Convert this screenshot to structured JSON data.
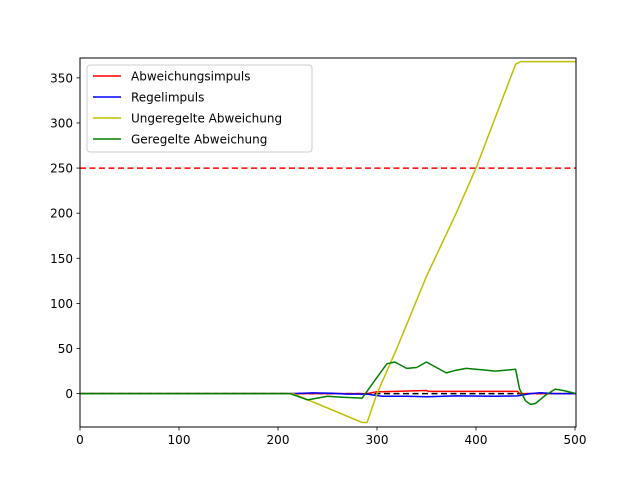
{
  "chart_data": {
    "type": "line",
    "xlim": [
      0,
      501
    ],
    "ylim": [
      -37,
      372
    ],
    "x_ticks": [
      0,
      100,
      200,
      300,
      400,
      500
    ],
    "y_ticks": [
      0,
      50,
      100,
      150,
      200,
      250,
      300,
      350
    ],
    "grid": false,
    "legend_position": "top-left",
    "title": "",
    "xlabel": "",
    "ylabel": "",
    "reference_lines": [
      {
        "y": 250,
        "color": "#ff0000",
        "style": "dashed"
      },
      {
        "y": 0,
        "color": "#000000",
        "style": "dashed"
      }
    ],
    "series": [
      {
        "name": "Abweichungsimpuls",
        "color": "#ff0000",
        "points": [
          [
            0,
            0
          ],
          [
            290,
            0
          ],
          [
            300,
            2
          ],
          [
            350,
            3.5
          ],
          [
            352,
            2.5
          ],
          [
            442,
            2.5
          ],
          [
            444,
            0
          ],
          [
            501,
            0
          ]
        ]
      },
      {
        "name": "Regelimpuls",
        "color": "#0000ff",
        "points": [
          [
            0,
            0
          ],
          [
            215,
            0
          ],
          [
            235,
            0.8
          ],
          [
            255,
            0.3
          ],
          [
            270,
            -0.5
          ],
          [
            290,
            -0.5
          ],
          [
            305,
            -3
          ],
          [
            330,
            -3
          ],
          [
            350,
            -3.5
          ],
          [
            380,
            -2.5
          ],
          [
            420,
            -3
          ],
          [
            442,
            -2.5
          ],
          [
            455,
            0
          ],
          [
            465,
            1
          ],
          [
            480,
            0
          ],
          [
            501,
            0
          ]
        ]
      },
      {
        "name": "Ungeregelte Abweichung",
        "color": "#bfbf00",
        "points": [
          [
            0,
            0
          ],
          [
            215,
            0
          ],
          [
            285,
            -32
          ],
          [
            290,
            -32
          ],
          [
            300,
            0
          ],
          [
            320,
            50
          ],
          [
            350,
            130
          ],
          [
            380,
            200
          ],
          [
            400,
            250
          ],
          [
            440,
            365
          ],
          [
            445,
            368
          ],
          [
            501,
            368
          ]
        ]
      },
      {
        "name": "Geregelte Abweichung",
        "color": "#008000",
        "points": [
          [
            0,
            0
          ],
          [
            212,
            0
          ],
          [
            230,
            -7
          ],
          [
            250,
            -3
          ],
          [
            265,
            -4
          ],
          [
            285,
            -5
          ],
          [
            300,
            18
          ],
          [
            310,
            33
          ],
          [
            318,
            35
          ],
          [
            330,
            28
          ],
          [
            340,
            29
          ],
          [
            350,
            35
          ],
          [
            360,
            29
          ],
          [
            370,
            23
          ],
          [
            380,
            26
          ],
          [
            390,
            28
          ],
          [
            400,
            27
          ],
          [
            420,
            25
          ],
          [
            440,
            27
          ],
          [
            444,
            5
          ],
          [
            450,
            -8
          ],
          [
            455,
            -12
          ],
          [
            460,
            -11
          ],
          [
            470,
            -2
          ],
          [
            480,
            5
          ],
          [
            490,
            3
          ],
          [
            501,
            0
          ]
        ]
      }
    ]
  }
}
